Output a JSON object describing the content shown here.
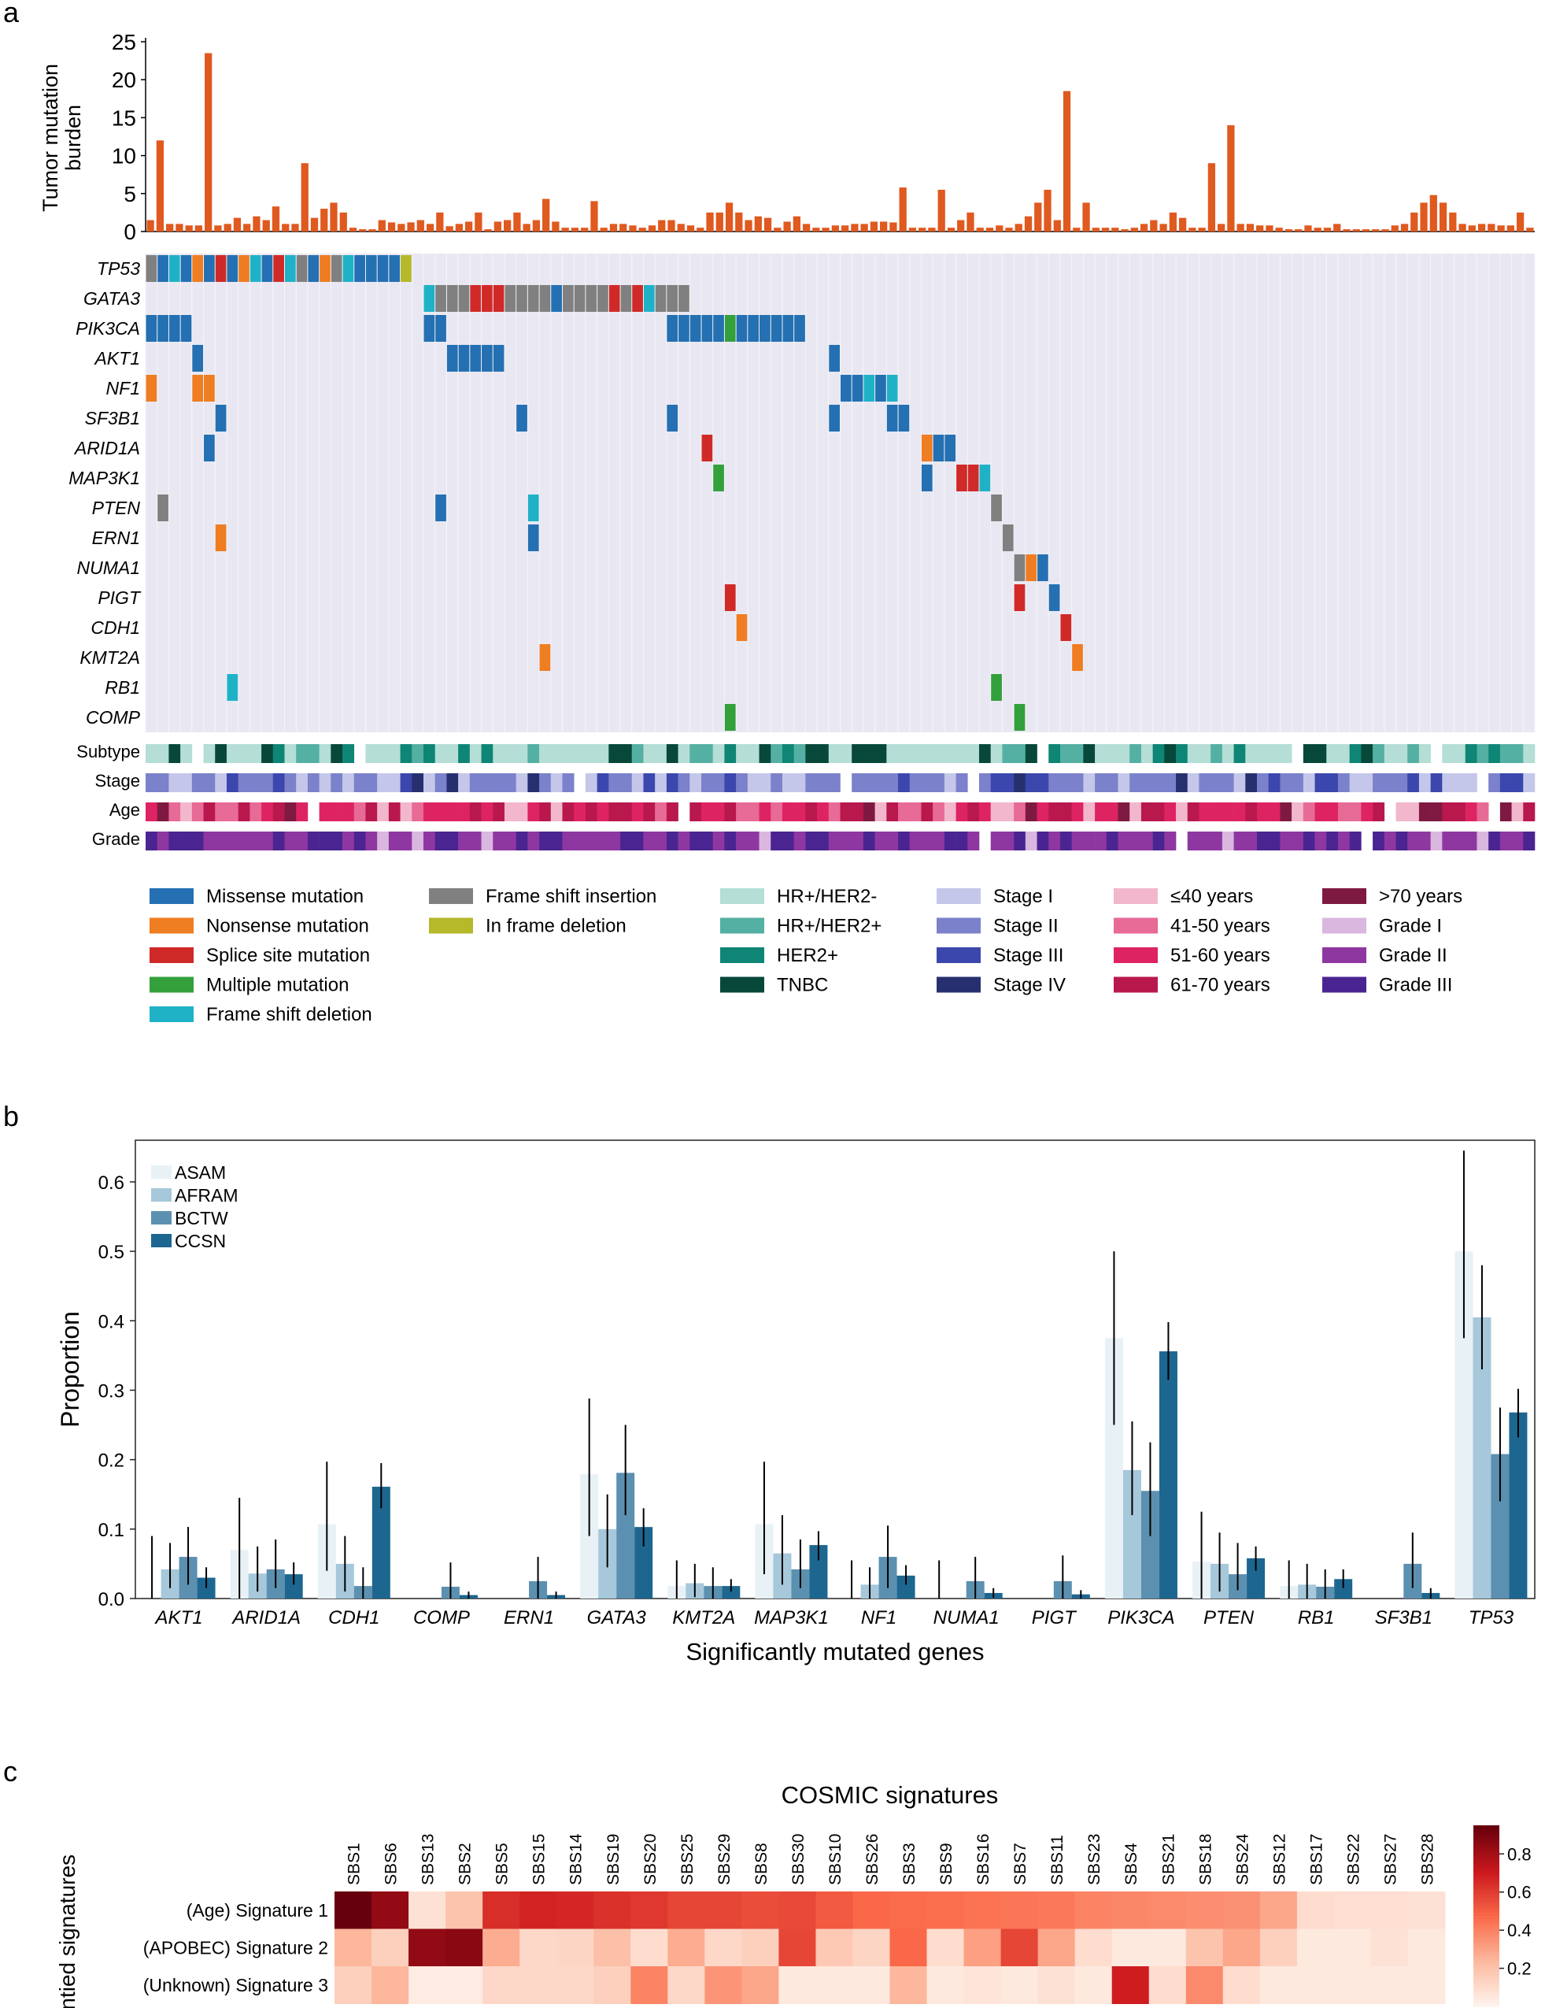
{
  "panels": {
    "a": {
      "letter": "a",
      "tmb_ylabel_line1": "Tumor mutation",
      "tmb_ylabel_line2": "burden",
      "tmb_ticks": [
        "0",
        "5",
        "10",
        "15",
        "20",
        "25"
      ],
      "track_labels": [
        "Subtype",
        "Stage",
        "Age",
        "Grade"
      ]
    },
    "b": {
      "letter": "b"
    },
    "c": {
      "letter": "c"
    }
  },
  "legend_a": [
    {
      "label": "Missense mutation",
      "color": "#2470b2"
    },
    {
      "label": "Nonsense mutation",
      "color": "#ef7d22"
    },
    {
      "label": "Splice site mutation",
      "color": "#d02a28"
    },
    {
      "label": "Multiple mutation",
      "color": "#33a03c"
    },
    {
      "label": "Frame shift deletion",
      "color": "#1fb2c7"
    },
    {
      "label": "Frame shift insertion",
      "color": "#808080"
    },
    {
      "label": "In frame deletion",
      "color": "#b5b92a"
    },
    {
      "label": "HR+/HER2-",
      "color": "#b4ded6"
    },
    {
      "label": "HR+/HER2+",
      "color": "#54b0a2"
    },
    {
      "label": "HER2+",
      "color": "#0e8575"
    },
    {
      "label": "TNBC",
      "color": "#07483a"
    },
    {
      "label": "Stage I",
      "color": "#c4c7e9"
    },
    {
      "label": "Stage II",
      "color": "#7b81ca"
    },
    {
      "label": "Stage III",
      "color": "#3b47ad"
    },
    {
      "label": "Stage IV",
      "color": "#27306f"
    },
    {
      "label": "≤40 years",
      "color": "#f2b7cc"
    },
    {
      "label": "41-50 years",
      "color": "#e76a97"
    },
    {
      "label": "51-60 years",
      "color": "#de2363"
    },
    {
      "label": "61-70 years",
      "color": "#b9184d"
    },
    {
      "label": ">70 years",
      "color": "#7e1a42"
    },
    {
      "label": "Grade I",
      "color": "#d9b7df"
    },
    {
      "label": "Grade II",
      "color": "#8f37a1"
    },
    {
      "label": "Grade III",
      "color": "#4a2591"
    }
  ],
  "chart_data": [
    {
      "type": "bar",
      "panel": "a-top",
      "ylabel": "Tumor mutation burden",
      "ylim": [
        0,
        25
      ],
      "color": "#e0591f",
      "values": [
        1.5,
        12,
        1,
        1,
        0.8,
        0.8,
        23.5,
        0.8,
        1,
        1.8,
        1,
        2,
        1.5,
        3.3,
        1,
        1,
        9,
        1.8,
        3,
        3.8,
        2.5,
        0.5,
        0.3,
        0.3,
        1.5,
        1.2,
        1,
        1.2,
        1.5,
        1,
        2.5,
        0.7,
        1,
        1.3,
        2.5,
        0.3,
        1.3,
        1.5,
        2.5,
        1,
        1.5,
        4.3,
        1.3,
        0.5,
        0.5,
        0.5,
        4,
        0.5,
        1,
        1,
        0.8,
        0.5,
        0.8,
        1.5,
        1.5,
        1,
        0.8,
        0.5,
        2.5,
        2.5,
        3.8,
        2.5,
        1.5,
        2,
        1.8,
        0.5,
        1.3,
        2,
        1,
        0.5,
        0.5,
        0.8,
        0.8,
        1,
        1,
        1.3,
        1.3,
        1.2,
        5.8,
        0.5,
        0.5,
        0.5,
        5.5,
        0.5,
        1.5,
        2.5,
        0.5,
        0.5,
        0.8,
        0.5,
        1,
        2,
        3.8,
        5.5,
        1.5,
        18.5,
        0.5,
        3.8,
        0.5,
        0.5,
        0.5,
        0.3,
        0.5,
        1,
        1.5,
        1,
        2.5,
        1.8,
        0.5,
        0.5,
        9,
        1,
        14,
        1,
        1,
        0.8,
        0.8,
        0.5,
        0.3,
        0.3,
        0.8,
        0.5,
        0.5,
        1,
        0.3,
        0.3,
        0.3,
        0.3,
        0.3,
        0.8,
        1,
        2.5,
        3.8,
        4.8,
        3.8,
        2.5,
        1,
        0.8,
        1,
        1,
        0.8,
        0.8,
        2.5,
        0.5
      ]
    },
    {
      "type": "heatmap",
      "panel": "a-oncoprint",
      "genes": [
        "TP53",
        "GATA3",
        "PIK3CA",
        "AKT1",
        "NF1",
        "SF3B1",
        "ARID1A",
        "MAP3K1",
        "PTEN",
        "ERN1",
        "NUMA1",
        "PIGT",
        "CDH1",
        "KMT2A",
        "RB1",
        "COMP"
      ],
      "mutation_types": [
        "Missense mutation",
        "Nonsense mutation",
        "Splice site mutation",
        "Multiple mutation",
        "Frame shift deletion",
        "Frame shift insertion",
        "In frame deletion"
      ],
      "samples": 143,
      "rows": [
        [
          5,
          5,
          4,
          0,
          4,
          1,
          0,
          2,
          0,
          1,
          4,
          0,
          2,
          4,
          5,
          0,
          1,
          5,
          4,
          0,
          0,
          0,
          0,
          6
        ],
        [],
        [
          0,
          0,
          0,
          0,
          0
        ],
        [],
        [
          1,
          5,
          1,
          1
        ],
        [],
        [],
        [],
        [],
        [],
        [],
        [],
        [],
        [],
        [],
        []
      ]
    },
    {
      "type": "bar",
      "panel": "b",
      "xlabel": "Significantly mutated genes",
      "ylabel": "Proportion",
      "ylim": [
        0,
        0.66
      ],
      "yticks": [
        "0.0",
        "0.1",
        "0.2",
        "0.3",
        "0.4",
        "0.5",
        "0.6"
      ],
      "categories": [
        "AKT1",
        "ARID1A",
        "CDH1",
        "COMP",
        "ERN1",
        "GATA3",
        "KMT2A",
        "MAP3K1",
        "NF1",
        "NUMA1",
        "PIGT",
        "PIK3CA",
        "PTEN",
        "RB1",
        "SF3B1",
        "TP53"
      ],
      "series": [
        {
          "name": "ASAM",
          "color": "#e8f1f6",
          "values": [
            0,
            0.07,
            0.107,
            0,
            0,
            0.179,
            0.018,
            0.107,
            0,
            0,
            0,
            0.375,
            0.053,
            0.018,
            0,
            0.5
          ]
        },
        {
          "name": "AFRAM",
          "color": "#a6c8da",
          "values": [
            0.042,
            0.036,
            0.05,
            0,
            0,
            0.1,
            0.022,
            0.065,
            0.02,
            0,
            0,
            0.185,
            0.05,
            0.02,
            0,
            0.405
          ]
        },
        {
          "name": "BCTW",
          "color": "#5c90b0",
          "values": [
            0.06,
            0.042,
            0.018,
            0.017,
            0.025,
            0.181,
            0.018,
            0.042,
            0.06,
            0.025,
            0.025,
            0.155,
            0.035,
            0.017,
            0.05,
            0.208
          ]
        },
        {
          "name": "CCSN",
          "color": "#1d6690",
          "values": [
            0.03,
            0.035,
            0.161,
            0.005,
            0.005,
            0.103,
            0.018,
            0.077,
            0.033,
            0.008,
            0.006,
            0.356,
            0.058,
            0.028,
            0.008,
            0.268
          ]
        }
      ],
      "errors": [
        [
          [
            0,
            0.09
          ],
          [
            0,
            0.145
          ],
          [
            0.04,
            0.197
          ],
          [
            0,
            0
          ],
          [
            0,
            0
          ],
          [
            0.09,
            0.288
          ],
          [
            0,
            0.055
          ],
          [
            0.035,
            0.197
          ],
          [
            0,
            0.055
          ],
          [
            0,
            0.055
          ],
          [
            0,
            0
          ],
          [
            0.25,
            0.5
          ],
          [
            0,
            0.125
          ],
          [
            0,
            0.055
          ],
          [
            0,
            0
          ],
          [
            0.375,
            0.645
          ]
        ],
        [
          [
            0.015,
            0.08
          ],
          [
            0.01,
            0.075
          ],
          [
            0.01,
            0.09
          ],
          [
            0,
            0
          ],
          [
            0,
            0
          ],
          [
            0.045,
            0.15
          ],
          [
            0.002,
            0.05
          ],
          [
            0.02,
            0.12
          ],
          [
            0,
            0.045
          ],
          [
            0,
            0
          ],
          [
            0,
            0
          ],
          [
            0.12,
            0.255
          ],
          [
            0.01,
            0.095
          ],
          [
            0,
            0.05
          ],
          [
            0,
            0
          ],
          [
            0.33,
            0.48
          ]
        ],
        [
          [
            0.02,
            0.103
          ],
          [
            0.015,
            0.085
          ],
          [
            0,
            0.045
          ],
          [
            0,
            0.052
          ],
          [
            0,
            0.06
          ],
          [
            0.12,
            0.25
          ],
          [
            0,
            0.045
          ],
          [
            0.015,
            0.085
          ],
          [
            0.015,
            0.105
          ],
          [
            0,
            0.06
          ],
          [
            0,
            0.062
          ],
          [
            0.09,
            0.225
          ],
          [
            0.012,
            0.08
          ],
          [
            0,
            0.042
          ],
          [
            0.015,
            0.095
          ],
          [
            0.14,
            0.275
          ]
        ],
        [
          [
            0.015,
            0.045
          ],
          [
            0.02,
            0.052
          ],
          [
            0.13,
            0.195
          ],
          [
            0,
            0.01
          ],
          [
            0,
            0.01
          ],
          [
            0.075,
            0.13
          ],
          [
            0.01,
            0.028
          ],
          [
            0.055,
            0.097
          ],
          [
            0.02,
            0.048
          ],
          [
            0.001,
            0.015
          ],
          [
            0,
            0.012
          ],
          [
            0.315,
            0.398
          ],
          [
            0.04,
            0.075
          ],
          [
            0.015,
            0.042
          ],
          [
            0,
            0.015
          ],
          [
            0.232,
            0.302
          ]
        ]
      ],
      "legend_position": "top-left"
    },
    {
      "type": "heatmap",
      "panel": "c",
      "title": "COSMIC signatures",
      "ylabel": "Identied signatures",
      "x": [
        "SBS1",
        "SBS6",
        "SBS13",
        "SBS2",
        "SBS5",
        "SBS15",
        "SBS14",
        "SBS19",
        "SBS20",
        "SBS25",
        "SBS29",
        "SBS8",
        "SBS30",
        "SBS10",
        "SBS26",
        "SBS3",
        "SBS9",
        "SBS16",
        "SBS7",
        "SBS11",
        "SBS23",
        "SBS4",
        "SBS21",
        "SBS18",
        "SBS24",
        "SBS12",
        "SBS17",
        "SBS22",
        "SBS27",
        "SBS28"
      ],
      "y": [
        "(Age) Signature 1",
        "(APOBEC) Signature 2",
        "(Unknown) Signature 3"
      ],
      "colorbar_ticks": [
        "0.2",
        "0.4",
        "0.6",
        "0.8"
      ],
      "zlim": [
        0,
        0.95
      ],
      "values": [
        [
          0.95,
          0.85,
          0.08,
          0.2,
          0.65,
          0.68,
          0.67,
          0.64,
          0.62,
          0.58,
          0.58,
          0.56,
          0.57,
          0.52,
          0.48,
          0.47,
          0.46,
          0.45,
          0.44,
          0.43,
          0.4,
          0.39,
          0.38,
          0.37,
          0.36,
          0.3,
          0.1,
          0.09,
          0.09,
          0.08
        ],
        [
          0.25,
          0.15,
          0.85,
          0.87,
          0.28,
          0.12,
          0.13,
          0.22,
          0.1,
          0.28,
          0.12,
          0.15,
          0.58,
          0.18,
          0.13,
          0.48,
          0.1,
          0.32,
          0.58,
          0.3,
          0.1,
          0.05,
          0.05,
          0.2,
          0.3,
          0.15,
          0.05,
          0.05,
          0.08,
          0.05
        ],
        [
          0.15,
          0.25,
          0.04,
          0.04,
          0.12,
          0.12,
          0.12,
          0.15,
          0.4,
          0.12,
          0.35,
          0.3,
          0.05,
          0.05,
          0.05,
          0.25,
          0.05,
          0.07,
          0.05,
          0.08,
          0.05,
          0.7,
          0.1,
          0.38,
          0.1,
          0.05,
          0.05,
          0.05,
          0.05,
          0.05
        ]
      ]
    }
  ]
}
